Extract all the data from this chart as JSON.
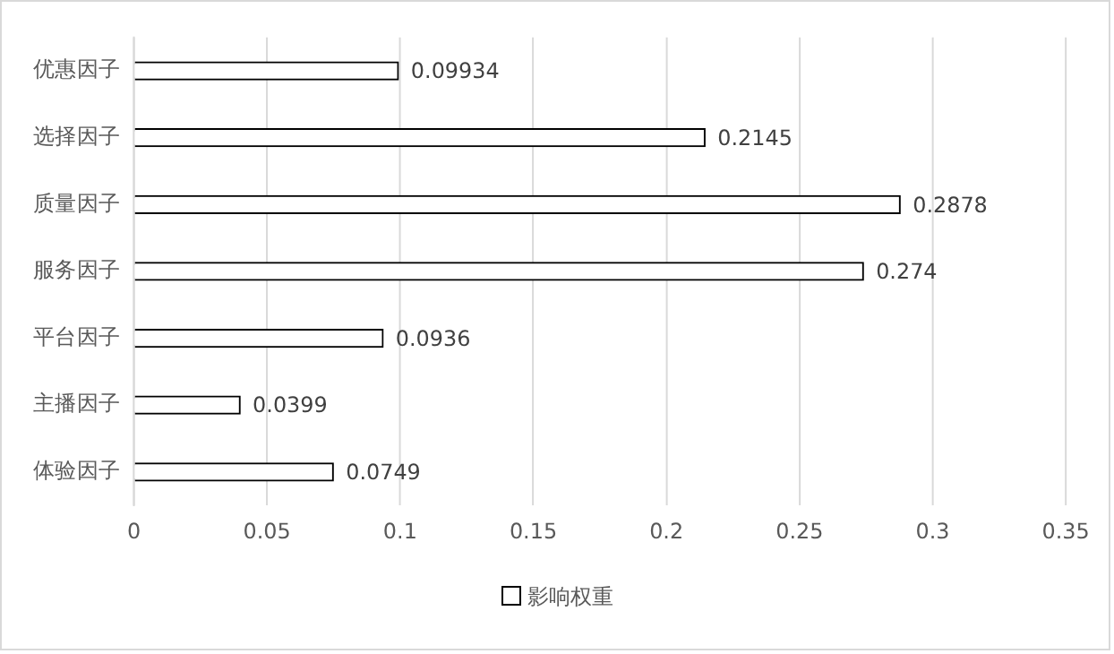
{
  "chart_data": {
    "type": "bar",
    "orientation": "horizontal",
    "categories": [
      "优惠因子",
      "选择因子",
      "质量因子",
      "服务因子",
      "平台因子",
      "主播因子",
      "体验因子"
    ],
    "series": [
      {
        "name": "影响权重",
        "color": "#ffffff",
        "values": [
          0.09934,
          0.2145,
          0.2878,
          0.274,
          0.0936,
          0.0399,
          0.0749
        ]
      }
    ],
    "xlim": [
      0,
      0.35
    ],
    "xticks": [
      0,
      0.05,
      0.1,
      0.15,
      0.2,
      0.25,
      0.3,
      0.35
    ],
    "grid": "x",
    "legend": "bottom",
    "data_labels": true
  }
}
